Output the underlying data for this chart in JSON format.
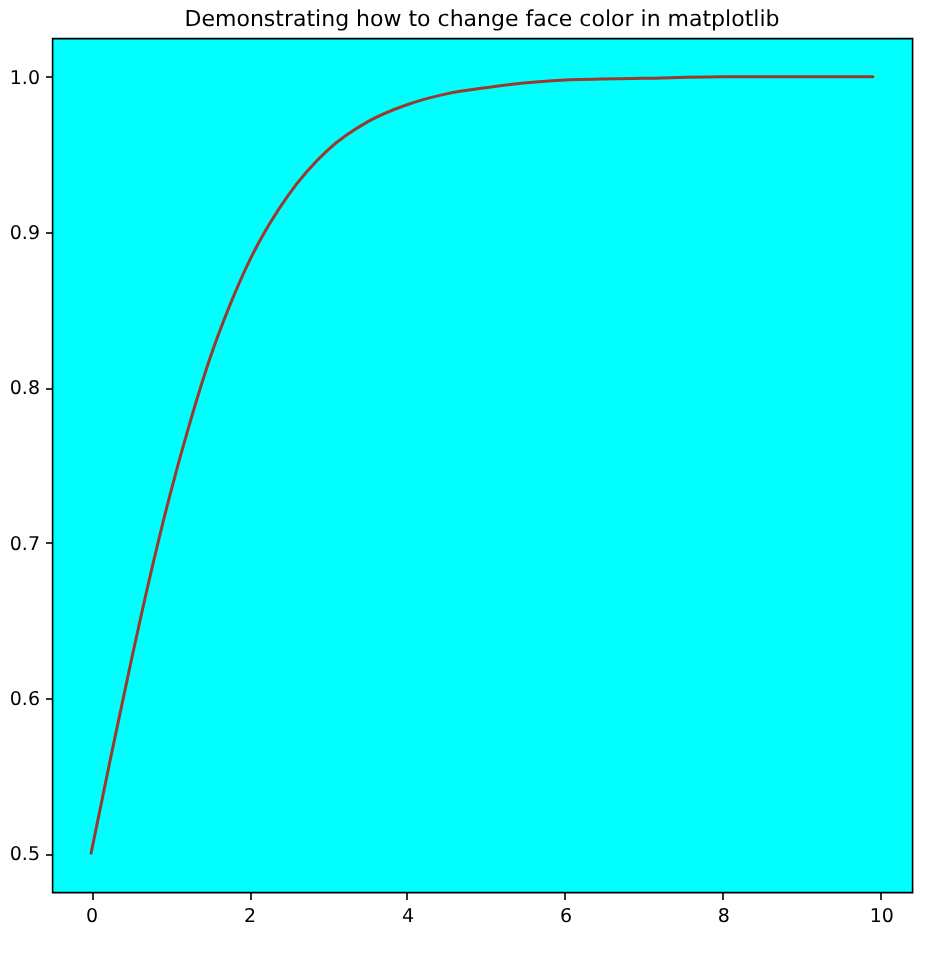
{
  "chart_data": {
    "type": "line",
    "title": "Demonstrating how to change face color in matplotlib",
    "x": [
      0,
      0.25,
      0.5,
      0.75,
      1,
      1.25,
      1.5,
      1.75,
      2,
      2.5,
      3,
      3.5,
      4,
      4.5,
      5,
      6,
      7,
      8,
      9.9
    ],
    "values": [
      0.5,
      0.562,
      0.622,
      0.679,
      0.731,
      0.777,
      0.818,
      0.852,
      0.881,
      0.924,
      0.953,
      0.971,
      0.982,
      0.989,
      0.993,
      0.998,
      0.999,
      1.0,
      1.0
    ],
    "color": "#9a3a2e",
    "xlim": [
      -0.495,
      10.395
    ],
    "ylim": [
      0.475,
      1.025
    ],
    "xticks": [
      0,
      2,
      4,
      6,
      8,
      10
    ],
    "yticks": [
      0.5,
      0.6,
      0.7,
      0.8,
      0.9,
      {
        "value": 1,
        "label": "1.0"
      }
    ]
  }
}
